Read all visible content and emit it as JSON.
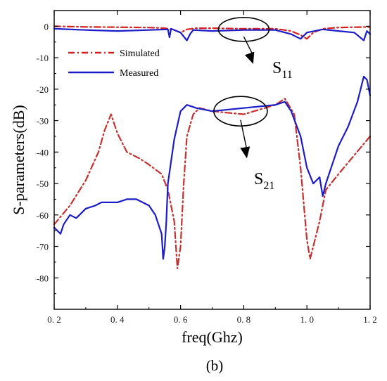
{
  "figure_label": "(b)",
  "chart_data": {
    "type": "line",
    "xlabel": "freq(Ghz)",
    "ylabel": "S-parameters(dB)",
    "xlim": [
      0.2,
      1.2
    ],
    "ylim": [
      -90,
      5
    ],
    "x_ticks": [
      0.2,
      0.4,
      0.6,
      0.8,
      1.0,
      1.2
    ],
    "x_tick_labels": [
      "0. 2",
      "0. 4",
      "0. 6",
      "0. 8",
      "1. 0",
      "1. 2"
    ],
    "y_ticks": [
      0,
      -10,
      -20,
      -30,
      -40,
      -50,
      -60,
      -70,
      -80
    ],
    "y_tick_labels": [
      "0",
      "-10",
      "-20",
      "-30",
      "-40",
      "-50",
      "-60",
      "-70",
      "-80"
    ],
    "grid": false,
    "legend_placement": "top-left",
    "legend": [
      {
        "label": "Simulated",
        "color": "#d62020",
        "style": "dash-dot"
      },
      {
        "label": "Measured",
        "color": "#1c1cc8",
        "style": "solid"
      }
    ],
    "annotations": [
      {
        "base": "S",
        "sub": "11",
        "ellipse_center": [
          0.8,
          -1
        ],
        "arrow_to": [
          0.83,
          -12
        ]
      },
      {
        "base": "S",
        "sub": "21",
        "ellipse_center": [
          0.79,
          -27
        ],
        "arrow_to": [
          0.81,
          -42
        ]
      }
    ],
    "series": [
      {
        "name": "Simulated S11",
        "color": "#d62020",
        "style": "dash-dot",
        "x": [
          0.2,
          0.3,
          0.4,
          0.5,
          0.55,
          0.58,
          0.6,
          0.62,
          0.65,
          0.7,
          0.8,
          0.9,
          0.95,
          0.98,
          1.0,
          1.02,
          1.05,
          1.1,
          1.15,
          1.2
        ],
        "y": [
          0,
          -0.2,
          -0.3,
          -0.4,
          -0.6,
          -1.2,
          -2.0,
          -1.0,
          -0.6,
          -0.6,
          -0.8,
          -0.8,
          -1.5,
          -2.8,
          -4.0,
          -2.0,
          -0.8,
          -0.4,
          -0.3,
          -0.2
        ]
      },
      {
        "name": "Measured S11",
        "color": "#1c1cc8",
        "style": "solid",
        "x": [
          0.2,
          0.3,
          0.4,
          0.5,
          0.56,
          0.565,
          0.57,
          0.6,
          0.62,
          0.63,
          0.64,
          0.7,
          0.8,
          0.9,
          0.95,
          0.98,
          1.0,
          1.05,
          1.1,
          1.15,
          1.18,
          1.19,
          1.2
        ],
        "y": [
          -0.8,
          -1.2,
          -1.5,
          -1.2,
          -1.0,
          -3.5,
          -0.8,
          -2.0,
          -4.5,
          -2.5,
          -1.2,
          -1.5,
          -1.2,
          -1.2,
          -2.5,
          -4.0,
          -2.0,
          -1.0,
          -1.5,
          -2.0,
          -4.5,
          -1.5,
          -2.5
        ]
      },
      {
        "name": "Simulated S21",
        "color": "#c6302e",
        "style": "dash-dot",
        "x": [
          0.2,
          0.25,
          0.3,
          0.34,
          0.36,
          0.38,
          0.4,
          0.43,
          0.47,
          0.5,
          0.54,
          0.56,
          0.58,
          0.59,
          0.6,
          0.61,
          0.62,
          0.64,
          0.66,
          0.7,
          0.8,
          0.9,
          0.93,
          0.96,
          0.98,
          1.0,
          1.01,
          1.02,
          1.04,
          1.06,
          1.1,
          1.15,
          1.2
        ],
        "y": [
          -63,
          -57,
          -49,
          -40,
          -33,
          -28,
          -34,
          -40,
          -42,
          -44,
          -47,
          -52,
          -62,
          -77,
          -70,
          -50,
          -35,
          -28,
          -26,
          -27,
          -28,
          -25,
          -23,
          -28,
          -45,
          -68,
          -74,
          -70,
          -62,
          -52,
          -47,
          -41,
          -35
        ]
      },
      {
        "name": "Measured S21",
        "color": "#1c1cc8",
        "style": "solid",
        "x": [
          0.2,
          0.22,
          0.23,
          0.25,
          0.27,
          0.3,
          0.33,
          0.35,
          0.38,
          0.4,
          0.43,
          0.46,
          0.5,
          0.52,
          0.54,
          0.545,
          0.55,
          0.555,
          0.56,
          0.58,
          0.6,
          0.62,
          0.65,
          0.7,
          0.8,
          0.9,
          0.93,
          0.95,
          0.98,
          1.0,
          1.02,
          1.03,
          1.04,
          1.045,
          1.05,
          1.06,
          1.08,
          1.1,
          1.13,
          1.16,
          1.18,
          1.19,
          1.2
        ],
        "y": [
          -64,
          -66,
          -63,
          -60,
          -61,
          -58,
          -57,
          -56,
          -56,
          -56,
          -55,
          -55,
          -57,
          -60,
          -66,
          -74,
          -70,
          -62,
          -50,
          -36,
          -27,
          -25,
          -26,
          -27,
          -26,
          -25,
          -24,
          -27,
          -35,
          -45,
          -50,
          -49,
          -48,
          -51,
          -54,
          -50,
          -44,
          -38,
          -32,
          -24,
          -16,
          -17,
          -22
        ]
      }
    ]
  }
}
